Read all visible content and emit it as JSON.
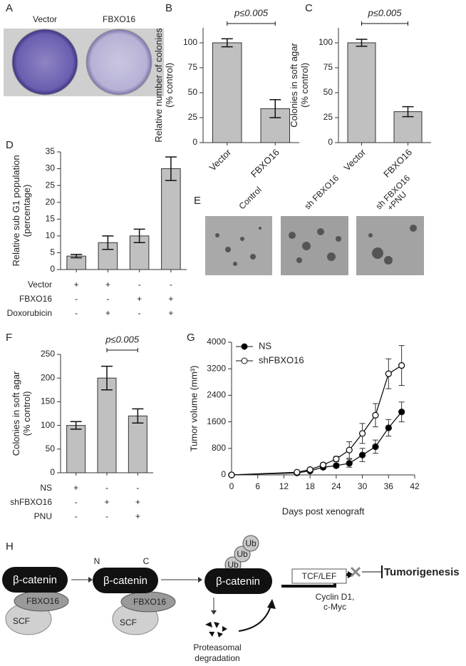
{
  "panels": {
    "A": {
      "label": "A",
      "labels": [
        "Vector",
        "FBXO16"
      ]
    },
    "E": {
      "label": "E",
      "labels": [
        "Control",
        "sh FBXO16",
        [
          "sh FBXO16",
          "+PNU"
        ]
      ]
    },
    "H": {
      "label": "H",
      "n": "N",
      "c": "C",
      "beta_catenin": [
        "β-catenin",
        "β-catenin",
        "β-catenin"
      ],
      "fbxo16": [
        "FBXO16",
        "FBXO16"
      ],
      "scf": [
        "SCF",
        "SCF"
      ],
      "ub": [
        "Ub",
        "Ub",
        "Ub"
      ],
      "tcf_lef": "TCF/LEF",
      "outcome": "Tumorigenesis",
      "targets": [
        "Cyclin D1,",
        "c-Myc"
      ],
      "degradation": [
        "Proteasomal",
        "degradation"
      ]
    }
  },
  "chart_data": [
    {
      "type": "bar",
      "panel": "B",
      "ylabel": [
        "Relative number of colonies",
        "(% control)"
      ],
      "categories": [
        "Vector",
        "FBXO16"
      ],
      "values": [
        100,
        34
      ],
      "errors": [
        4,
        9
      ],
      "color": "#c0c0c0",
      "ylim": [
        0,
        115
      ],
      "yticks": [
        0,
        25,
        50,
        75,
        100
      ],
      "annotation": "p≤0.005"
    },
    {
      "type": "bar",
      "panel": "C",
      "ylabel": [
        "Colonies in soft agar",
        "(% control)"
      ],
      "categories": [
        "Vector",
        "FBXO16"
      ],
      "values": [
        100,
        31
      ],
      "errors": [
        3.5,
        5
      ],
      "color": "#c0c0c0",
      "ylim": [
        0,
        115
      ],
      "yticks": [
        0,
        25,
        50,
        75,
        100
      ],
      "annotation": "p≤0.005"
    },
    {
      "type": "bar",
      "panel": "D",
      "ylabel": [
        "Relative sub G1 population",
        "(percentage)"
      ],
      "values": [
        4,
        8,
        10,
        30
      ],
      "errors": [
        0.5,
        2,
        2,
        3.5
      ],
      "color": "#c0c0c0",
      "ylim": [
        0,
        35
      ],
      "yticks": [
        0,
        5,
        10,
        15,
        20,
        25,
        30,
        35
      ],
      "conditions": [
        {
          "name": "Vector",
          "marks": [
            "+",
            "+",
            "-",
            "-"
          ]
        },
        {
          "name": "FBXO16",
          "marks": [
            "-",
            "-",
            "+",
            "+"
          ]
        },
        {
          "name": "Doxorubicin",
          "marks": [
            "-",
            "+",
            "-",
            "+"
          ]
        }
      ]
    },
    {
      "type": "bar",
      "panel": "F",
      "ylabel": [
        "Colonies in soft agar",
        "(% control)"
      ],
      "values": [
        100,
        200,
        120
      ],
      "errors": [
        8,
        25,
        15
      ],
      "color": "#c0c0c0",
      "ylim": [
        0,
        250
      ],
      "yticks": [
        0,
        50,
        100,
        150,
        200,
        250
      ],
      "annotation": "p≤0.005",
      "conditions": [
        {
          "name": "NS",
          "marks": [
            "+",
            "-",
            "-"
          ]
        },
        {
          "name": "shFBXO16",
          "marks": [
            "-",
            "+",
            "+"
          ]
        },
        {
          "name": "PNU",
          "marks": [
            "-",
            "-",
            "+"
          ]
        }
      ]
    },
    {
      "type": "line",
      "panel": "G",
      "xlabel": "Days post xenograft",
      "ylabel": [
        "Tumor volume (mm³)"
      ],
      "x": [
        0,
        15,
        18,
        21,
        24,
        27,
        30,
        33,
        36,
        39
      ],
      "series": [
        {
          "name": "NS",
          "color": "#000000",
          "values": [
            0,
            60,
            120,
            230,
            280,
            350,
            600,
            850,
            1420,
            1900
          ],
          "errors": [
            0,
            30,
            40,
            50,
            60,
            120,
            200,
            200,
            250,
            300
          ]
        },
        {
          "name": "shFBXO16",
          "color": "#ffffff",
          "values": [
            0,
            80,
            160,
            300,
            480,
            750,
            1250,
            1800,
            3050,
            3300
          ],
          "errors": [
            0,
            30,
            40,
            60,
            80,
            250,
            300,
            350,
            450,
            600
          ]
        }
      ],
      "xlim": [
        0,
        42
      ],
      "xticks": [
        0,
        6,
        12,
        18,
        24,
        30,
        36,
        42
      ],
      "ylim": [
        0,
        4000
      ],
      "yticks": [
        0,
        800,
        1600,
        2400,
        3200,
        4000
      ],
      "legend": "upper-left"
    }
  ]
}
